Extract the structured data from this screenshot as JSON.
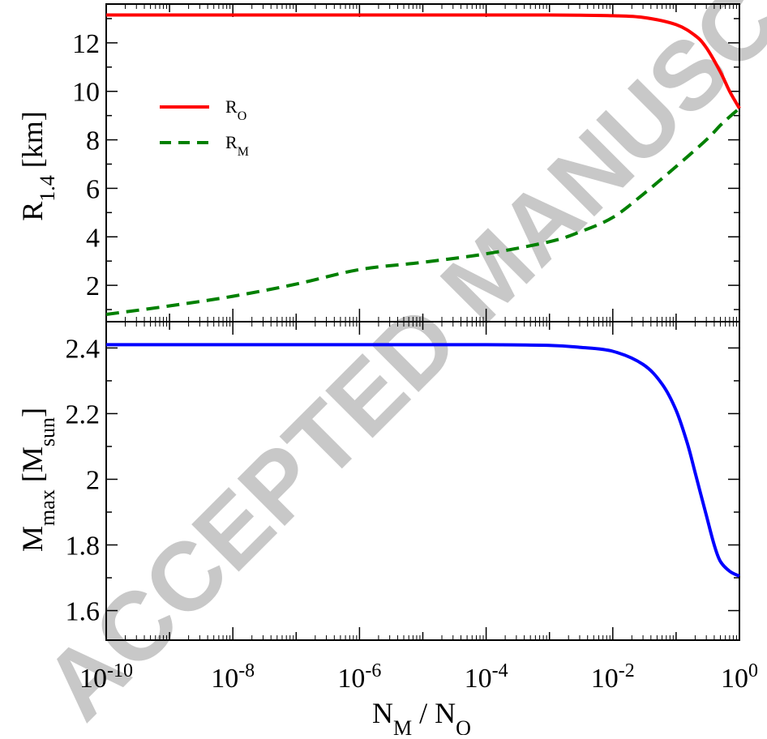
{
  "chart_data": [
    {
      "panel": "top",
      "type": "line",
      "xscale": "log",
      "xlim": [
        "1e-10",
        "1"
      ],
      "ylim": [
        0.5,
        13.6
      ],
      "yticks": [
        2,
        4,
        6,
        8,
        10,
        12
      ],
      "ylabel": {
        "main": "R",
        "sub": "1.4",
        "rest": " [km]"
      },
      "legend_position": "upper-left",
      "series": [
        {
          "name": "R",
          "name_sub": "O",
          "color": "#ff0000",
          "dash": "solid",
          "x": [
            "1e-10",
            "1e-9",
            "1e-8",
            "1e-7",
            "1e-6",
            "1e-5",
            "1e-4",
            "1e-3",
            "3e-3",
            "1e-2",
            "3e-2",
            "0.1",
            "0.2",
            "0.3",
            "0.5",
            "0.7",
            "1"
          ],
          "y": [
            13.15,
            13.15,
            13.15,
            13.15,
            13.15,
            13.15,
            13.15,
            13.15,
            13.14,
            13.12,
            13.05,
            12.75,
            12.3,
            11.8,
            10.8,
            10.0,
            9.3
          ]
        },
        {
          "name": "R",
          "name_sub": "M",
          "color": "#008000",
          "dash": "dashed",
          "x": [
            "1e-10",
            "1e-9",
            "1e-8",
            "1e-7",
            "1e-6",
            "1e-5",
            "1e-4",
            "1e-3",
            "3e-3",
            "1e-2",
            "3e-2",
            "0.1",
            "0.3",
            "0.5",
            "0.7",
            "1"
          ],
          "y": [
            0.8,
            1.15,
            1.55,
            2.05,
            2.65,
            2.95,
            3.3,
            3.8,
            4.2,
            4.8,
            5.75,
            6.9,
            8.0,
            8.6,
            8.95,
            9.3
          ]
        }
      ]
    },
    {
      "panel": "bottom",
      "type": "line",
      "xscale": "log",
      "xlim": [
        "1e-10",
        "1"
      ],
      "ylim": [
        1.51,
        2.48
      ],
      "yticks": [
        1.6,
        1.8,
        2,
        2.2,
        2.4
      ],
      "ytick_labels": [
        "1.6",
        "1.8",
        "2",
        "2.2",
        "2.4"
      ],
      "ylabel": {
        "main": "M",
        "sub": "max",
        "rest": " [M",
        "sub2": "sun",
        "end": "]"
      },
      "xlabel": {
        "n1": "N",
        "s1": "M",
        "mid": " / N",
        "s2": "O"
      },
      "xtick_labels": [
        {
          "base": "10",
          "exp": "-10"
        },
        {
          "base": "10",
          "exp": "-8"
        },
        {
          "base": "10",
          "exp": "-6"
        },
        {
          "base": "10",
          "exp": "-4"
        },
        {
          "base": "10",
          "exp": "-2"
        },
        {
          "base": "10",
          "exp": "0"
        }
      ],
      "series": [
        {
          "color": "#0000ff",
          "dash": "solid",
          "x": [
            "1e-10",
            "1e-8",
            "1e-6",
            "1e-4",
            "1e-3",
            "3e-3",
            "1e-2",
            "3e-2",
            "0.06",
            "0.1",
            "0.15",
            "0.2",
            "0.3",
            "0.4",
            "0.5",
            "0.7",
            "1"
          ],
          "y": [
            2.41,
            2.41,
            2.41,
            2.41,
            2.408,
            2.402,
            2.39,
            2.35,
            2.29,
            2.21,
            2.11,
            2.02,
            1.89,
            1.8,
            1.75,
            1.72,
            1.705
          ]
        }
      ]
    }
  ],
  "watermark": "ACCEPTED MANUSCRIPT"
}
